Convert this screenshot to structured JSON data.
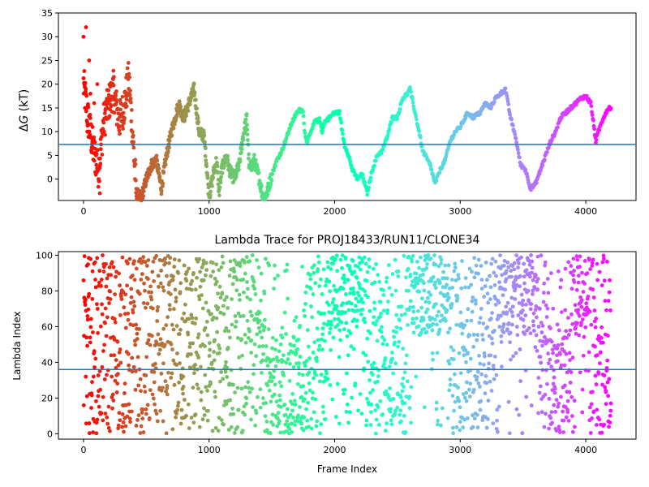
{
  "chart_data": [
    {
      "type": "scatter",
      "title": "",
      "xlabel": "",
      "ylabel_prefix": "Δ",
      "ylabel_var": "G",
      "ylabel_unit": " (kT)",
      "xlim": [
        -200,
        4400
      ],
      "ylim": [
        -4.5,
        35
      ],
      "xticks": [
        0,
        1000,
        2000,
        3000,
        4000
      ],
      "yticks": [
        0,
        5,
        10,
        15,
        20,
        25,
        30,
        35
      ],
      "xtick_labels": [
        "0",
        "1000",
        "2000",
        "3000",
        "4000"
      ],
      "ytick_labels": [
        "0",
        "5",
        "10",
        "15",
        "20",
        "25",
        "30",
        "35"
      ],
      "hline": 7.3,
      "hline_color": "#1f77b4",
      "colormap": "rainbow (red at frame 0 to violet at last frame)",
      "frame_range": [
        0,
        4200
      ],
      "trace_keypoints": {
        "x": [
          0,
          40,
          80,
          120,
          160,
          200,
          240,
          280,
          320,
          360,
          380,
          400,
          420,
          460,
          500,
          540,
          580,
          620,
          660,
          700,
          740,
          760,
          780,
          800,
          840,
          880,
          920,
          960,
          980,
          1000,
          1040,
          1060,
          1080,
          1100,
          1140,
          1160,
          1200,
          1240,
          1270,
          1300,
          1320,
          1360,
          1400,
          1430,
          1460,
          1480,
          1500,
          1540,
          1580,
          1620,
          1660,
          1700,
          1720,
          1750,
          1760,
          1780,
          1800,
          1840,
          1880,
          1900,
          1920,
          1960,
          2000,
          2040,
          2060,
          2080,
          2100,
          2140,
          2180,
          2220,
          2260,
          2300,
          2340,
          2380,
          2420,
          2460,
          2500,
          2540,
          2580,
          2600,
          2640,
          2680,
          2700,
          2720,
          2760,
          2800,
          2840,
          2880,
          2920,
          2960,
          3000,
          3020,
          3060,
          3100,
          3160,
          3200,
          3240,
          3280,
          3320,
          3360,
          3380,
          3400,
          3440,
          3480,
          3520,
          3560,
          3600,
          3640,
          3680,
          3720,
          3760,
          3800,
          3840,
          3880,
          3920,
          3960,
          4000,
          4040,
          4080,
          4100,
          4140,
          4180
        ],
        "y": [
          20,
          12,
          6,
          2,
          12,
          16,
          19,
          12,
          15,
          21,
          14,
          6,
          -3,
          -4,
          0,
          3,
          4,
          -2,
          5,
          10,
          14,
          16,
          14,
          13,
          16,
          19,
          10,
          9,
          3,
          -4,
          2,
          4,
          -3,
          2,
          5,
          2,
          0,
          3,
          9,
          13,
          2,
          4,
          0,
          -4,
          -3,
          -1,
          1,
          4,
          6,
          9,
          12,
          14,
          14.5,
          14.5,
          10,
          8,
          9,
          12,
          12.5,
          10,
          12,
          13,
          14,
          14,
          10,
          7,
          6,
          2,
          0,
          1,
          -3,
          2,
          5,
          6,
          9,
          13,
          13,
          17,
          18,
          19,
          14,
          9,
          6,
          5,
          3,
          -1,
          2,
          4,
          8,
          10,
          11,
          12,
          14,
          13,
          14,
          16,
          15,
          17,
          18,
          19,
          16,
          13,
          9,
          3,
          2,
          -2,
          -1,
          2,
          5,
          8,
          10,
          13,
          14,
          15,
          16,
          17,
          17.5,
          16,
          8,
          10,
          13,
          15
        ]
      },
      "red_scatter": {
        "x": [
          0,
          10,
          20,
          30,
          45,
          55,
          70,
          85,
          100,
          110,
          130,
          150
        ],
        "y": [
          30,
          20,
          32,
          10,
          25,
          18,
          8,
          16,
          5,
          20,
          -3,
          10
        ]
      }
    },
    {
      "type": "scatter",
      "title": "Lambda Trace for PROJ18433/RUN11/CLONE34",
      "xlabel": "Frame Index",
      "ylabel": "Lambda Index",
      "xlim": [
        -200,
        4400
      ],
      "ylim": [
        -3,
        102
      ],
      "xticks": [
        0,
        1000,
        2000,
        3000,
        4000
      ],
      "yticks": [
        0,
        20,
        40,
        60,
        80,
        100
      ],
      "xtick_labels": [
        "0",
        "1000",
        "2000",
        "3000",
        "4000"
      ],
      "ytick_labels": [
        "0",
        "20",
        "40",
        "60",
        "80",
        "100"
      ],
      "hline": 36,
      "hline_color": "#1f77b4",
      "colormap": "rainbow (red at frame 0 to violet at last frame)",
      "frame_range": [
        0,
        4200
      ],
      "series_description": "Lambda index per frame, values spread 0-100; dense upper band near frames 2000-2200, 2600-2900, 3300-3600 and 3900-4000",
      "point_density_hint": "about 2100 points shown"
    }
  ]
}
